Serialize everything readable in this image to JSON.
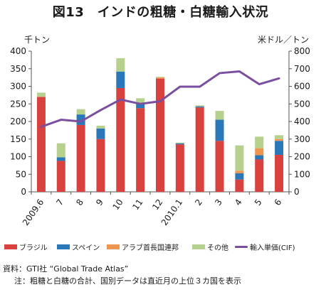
{
  "title": "図13　インドの粗糖・白糖輸入状況",
  "left_unit": "千トン",
  "right_unit": "米ドル／トン",
  "colors": {
    "brazil": "#d9413f",
    "spain": "#2b78b8",
    "arab": "#f0954f",
    "other": "#b6d18d",
    "price": "#7b4fa0",
    "axis": "#555555"
  },
  "chart_data": {
    "type": "bar",
    "stacked": true,
    "categories": [
      "2009.6",
      "7",
      "8",
      "9",
      "10",
      "11",
      "12",
      "2010.1",
      "2",
      "3",
      "4",
      "5",
      "6"
    ],
    "ylim": [
      0,
      400
    ],
    "y_ticks": [
      0,
      50,
      100,
      150,
      200,
      250,
      300,
      350,
      400
    ],
    "y2lim": [
      0,
      800
    ],
    "y2_ticks": [
      0,
      100,
      200,
      300,
      400,
      500,
      600,
      700,
      800
    ],
    "grid": false,
    "legend_position": "bottom",
    "series": [
      {
        "name": "ブラジル",
        "key": "brazil",
        "values": [
          270,
          88,
          190,
          150,
          295,
          238,
          322,
          135,
          240,
          145,
          35,
          92,
          105
        ]
      },
      {
        "name": "スペイン",
        "key": "spain",
        "values": [
          0,
          10,
          30,
          30,
          47,
          12,
          0,
          3,
          3,
          60,
          18,
          12,
          40
        ]
      },
      {
        "name": "アラブ首長国連邦",
        "key": "arab",
        "values": [
          0,
          0,
          0,
          0,
          0,
          3,
          3,
          0,
          0,
          0,
          7,
          20,
          5
        ]
      },
      {
        "name": "その他",
        "key": "other",
        "values": [
          12,
          40,
          15,
          8,
          38,
          13,
          2,
          2,
          3,
          25,
          72,
          33,
          11
        ]
      }
    ],
    "line_series": {
      "name": "輸入単価(CIF)",
      "axis": "right",
      "values": [
        370,
        410,
        400,
        465,
        525,
        500,
        515,
        598,
        598,
        675,
        685,
        612,
        645
      ]
    }
  },
  "notes": {
    "source": "資料：GTI社 “Global Trade Atlas”",
    "note": "注：粗糖と白糖の合計、国別データは直近月の上位３カ国を表示"
  }
}
